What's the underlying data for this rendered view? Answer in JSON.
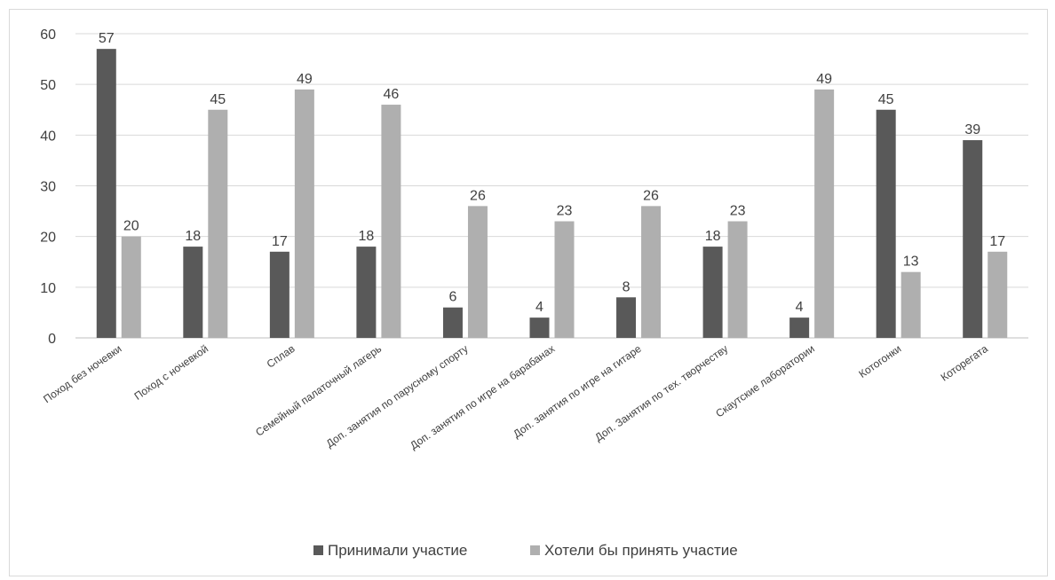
{
  "chart_data": {
    "type": "bar",
    "title": "",
    "xlabel": "",
    "ylabel": "",
    "ylim": [
      0,
      60
    ],
    "yticks": [
      0,
      10,
      20,
      30,
      40,
      50,
      60
    ],
    "grid": true,
    "legend_position": "bottom",
    "categories": [
      "Поход без ночевки",
      "Поход с ночевкой",
      "Сплав",
      "Семейный палаточный лагерь",
      "Доп. занятия по парусному спорту",
      "Доп. занятия по игре на барабанах",
      "Доп. занятия по игре на гитаре",
      "Доп. Занятия по тех. творчеству",
      "Скаутские лаборатории",
      "Котогонки",
      "Которегата"
    ],
    "series": [
      {
        "name": "Принимали участие",
        "color": "#595959",
        "values": [
          57,
          18,
          17,
          18,
          6,
          4,
          8,
          18,
          4,
          45,
          39
        ]
      },
      {
        "name": "Хотели бы принять участие",
        "color": "#afafaf",
        "values": [
          20,
          45,
          49,
          46,
          26,
          23,
          26,
          23,
          49,
          13,
          17
        ]
      }
    ]
  }
}
